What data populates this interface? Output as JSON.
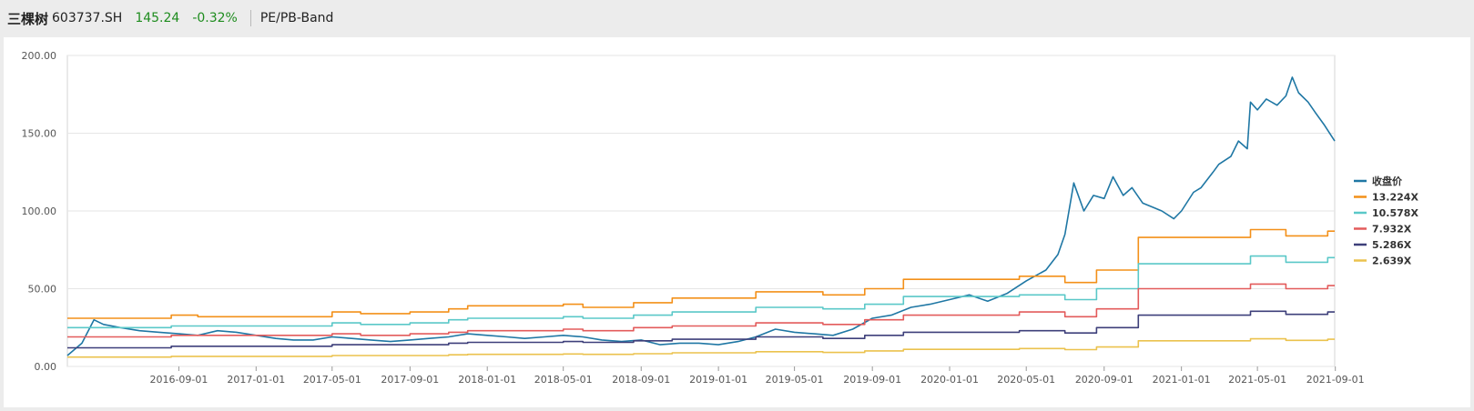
{
  "header": {
    "stock_name": "三棵树",
    "stock_code": "603737.SH",
    "price": "145.24",
    "change_pct": "-0.32%",
    "tab_label": "PE/PB-Band"
  },
  "colors": {
    "price_up_down": "#1e8c1e",
    "series": [
      "#1f77a4",
      "#f39019",
      "#5ac8c8",
      "#e35b5b",
      "#3d3f7a",
      "#ebc24d"
    ]
  },
  "chart_data": {
    "type": "line",
    "title": "",
    "xlabel": "",
    "ylabel": "",
    "ylim": [
      0,
      200
    ],
    "y_ticks": [
      "0.00",
      "50.00",
      "100.00",
      "150.00",
      "200.00"
    ],
    "x_range": [
      "2016-03-09",
      "2021-08-31"
    ],
    "x_ticks": [
      "2016-09-01",
      "2017-01-01",
      "2017-05-01",
      "2017-09-01",
      "2018-01-01",
      "2018-05-01",
      "2018-09-01",
      "2019-01-01",
      "2019-05-01",
      "2019-09-01",
      "2020-01-01",
      "2020-05-01",
      "2020-09-01",
      "2021-01-01",
      "2021-05-01",
      "2021-09-01"
    ],
    "grid": "horizontal",
    "legend_position": "right",
    "series": [
      {
        "name": "收盘价",
        "kind": "line",
        "points": [
          [
            "2016-03-09",
            7
          ],
          [
            "2016-04-01",
            15
          ],
          [
            "2016-04-20",
            30
          ],
          [
            "2016-05-05",
            27
          ],
          [
            "2016-06-01",
            25
          ],
          [
            "2016-07-01",
            23
          ],
          [
            "2016-08-01",
            22
          ],
          [
            "2016-09-01",
            21
          ],
          [
            "2016-10-01",
            20
          ],
          [
            "2016-11-01",
            23
          ],
          [
            "2016-12-01",
            22
          ],
          [
            "2017-01-01",
            20
          ],
          [
            "2017-02-01",
            18
          ],
          [
            "2017-03-01",
            17
          ],
          [
            "2017-04-01",
            17
          ],
          [
            "2017-05-01",
            19
          ],
          [
            "2017-06-01",
            18
          ],
          [
            "2017-07-01",
            17
          ],
          [
            "2017-08-01",
            16
          ],
          [
            "2017-09-01",
            17
          ],
          [
            "2017-10-01",
            18
          ],
          [
            "2017-11-01",
            19
          ],
          [
            "2017-12-01",
            21
          ],
          [
            "2018-01-01",
            20
          ],
          [
            "2018-02-01",
            19
          ],
          [
            "2018-03-01",
            18
          ],
          [
            "2018-04-01",
            19
          ],
          [
            "2018-05-01",
            20
          ],
          [
            "2018-06-01",
            19
          ],
          [
            "2018-07-01",
            17
          ],
          [
            "2018-08-01",
            16
          ],
          [
            "2018-09-01",
            17
          ],
          [
            "2018-10-01",
            14
          ],
          [
            "2018-11-01",
            15
          ],
          [
            "2018-12-01",
            15
          ],
          [
            "2019-01-01",
            14
          ],
          [
            "2019-02-01",
            16
          ],
          [
            "2019-03-01",
            19
          ],
          [
            "2019-04-01",
            24
          ],
          [
            "2019-05-01",
            22
          ],
          [
            "2019-06-01",
            21
          ],
          [
            "2019-07-01",
            20
          ],
          [
            "2019-08-01",
            24
          ],
          [
            "2019-09-01",
            31
          ],
          [
            "2019-10-01",
            33
          ],
          [
            "2019-11-01",
            38
          ],
          [
            "2019-12-01",
            40
          ],
          [
            "2020-01-01",
            43
          ],
          [
            "2020-02-01",
            46
          ],
          [
            "2020-03-01",
            42
          ],
          [
            "2020-04-01",
            47
          ],
          [
            "2020-05-01",
            55
          ],
          [
            "2020-06-01",
            62
          ],
          [
            "2020-06-20",
            72
          ],
          [
            "2020-07-01",
            85
          ],
          [
            "2020-07-15",
            118
          ],
          [
            "2020-07-31",
            100
          ],
          [
            "2020-08-15",
            110
          ],
          [
            "2020-09-01",
            108
          ],
          [
            "2020-09-15",
            122
          ],
          [
            "2020-10-01",
            110
          ],
          [
            "2020-10-15",
            115
          ],
          [
            "2020-11-01",
            105
          ],
          [
            "2020-12-01",
            100
          ],
          [
            "2020-12-20",
            95
          ],
          [
            "2021-01-01",
            100
          ],
          [
            "2021-01-20",
            112
          ],
          [
            "2021-02-01",
            115
          ],
          [
            "2021-02-20",
            125
          ],
          [
            "2021-03-01",
            130
          ],
          [
            "2021-03-20",
            135
          ],
          [
            "2021-04-01",
            145
          ],
          [
            "2021-04-15",
            140
          ],
          [
            "2021-04-20",
            170
          ],
          [
            "2021-05-01",
            165
          ],
          [
            "2021-05-15",
            172
          ],
          [
            "2021-06-01",
            168
          ],
          [
            "2021-06-15",
            174
          ],
          [
            "2021-06-25",
            186
          ],
          [
            "2021-07-05",
            176
          ],
          [
            "2021-07-20",
            170
          ],
          [
            "2021-08-01",
            163
          ],
          [
            "2021-08-15",
            155
          ],
          [
            "2021-08-31",
            145
          ]
        ]
      },
      {
        "name": "13.224X",
        "kind": "step",
        "points": [
          [
            "2016-03-09",
            31
          ],
          [
            "2016-08-20",
            33
          ],
          [
            "2016-10-01",
            32
          ],
          [
            "2017-05-01",
            35
          ],
          [
            "2017-06-15",
            34
          ],
          [
            "2017-09-01",
            35
          ],
          [
            "2017-11-01",
            37
          ],
          [
            "2017-12-01",
            39
          ],
          [
            "2018-05-01",
            40
          ],
          [
            "2018-06-01",
            38
          ],
          [
            "2018-08-20",
            41
          ],
          [
            "2018-10-20",
            44
          ],
          [
            "2019-03-01",
            48
          ],
          [
            "2019-06-15",
            46
          ],
          [
            "2019-08-20",
            50
          ],
          [
            "2019-10-20",
            56
          ],
          [
            "2020-04-20",
            58
          ],
          [
            "2020-07-01",
            54
          ],
          [
            "2020-08-20",
            62
          ],
          [
            "2020-10-25",
            83
          ],
          [
            "2021-04-20",
            88
          ],
          [
            "2021-06-15",
            84
          ],
          [
            "2021-08-20",
            87
          ],
          [
            "2021-08-31",
            87
          ]
        ]
      },
      {
        "name": "10.578X",
        "kind": "step",
        "points": [
          [
            "2016-03-09",
            25
          ],
          [
            "2016-08-20",
            26
          ],
          [
            "2017-05-01",
            28
          ],
          [
            "2017-06-15",
            27
          ],
          [
            "2017-09-01",
            28
          ],
          [
            "2017-11-01",
            30
          ],
          [
            "2017-12-01",
            31
          ],
          [
            "2018-05-01",
            32
          ],
          [
            "2018-06-01",
            31
          ],
          [
            "2018-08-20",
            33
          ],
          [
            "2018-10-20",
            35
          ],
          [
            "2019-03-01",
            38
          ],
          [
            "2019-06-15",
            37
          ],
          [
            "2019-08-20",
            40
          ],
          [
            "2019-10-20",
            45
          ],
          [
            "2020-04-20",
            46
          ],
          [
            "2020-07-01",
            43
          ],
          [
            "2020-08-20",
            50
          ],
          [
            "2020-10-25",
            66
          ],
          [
            "2021-04-20",
            71
          ],
          [
            "2021-06-15",
            67
          ],
          [
            "2021-08-20",
            70
          ],
          [
            "2021-08-31",
            70
          ]
        ]
      },
      {
        "name": "7.932X",
        "kind": "step",
        "points": [
          [
            "2016-03-09",
            19
          ],
          [
            "2016-08-20",
            20
          ],
          [
            "2017-05-01",
            21
          ],
          [
            "2017-06-15",
            20
          ],
          [
            "2017-09-01",
            21
          ],
          [
            "2017-11-01",
            22
          ],
          [
            "2017-12-01",
            23
          ],
          [
            "2018-05-01",
            24
          ],
          [
            "2018-06-01",
            23
          ],
          [
            "2018-08-20",
            25
          ],
          [
            "2018-10-20",
            26
          ],
          [
            "2019-03-01",
            28
          ],
          [
            "2019-06-15",
            27
          ],
          [
            "2019-08-20",
            30
          ],
          [
            "2019-10-20",
            33
          ],
          [
            "2020-04-20",
            35
          ],
          [
            "2020-07-01",
            32
          ],
          [
            "2020-08-20",
            37
          ],
          [
            "2020-10-25",
            50
          ],
          [
            "2021-04-20",
            53
          ],
          [
            "2021-06-15",
            50
          ],
          [
            "2021-08-20",
            52
          ],
          [
            "2021-08-31",
            52
          ]
        ]
      },
      {
        "name": "5.286X",
        "kind": "step",
        "points": [
          [
            "2016-03-09",
            12
          ],
          [
            "2016-08-20",
            13
          ],
          [
            "2017-05-01",
            14
          ],
          [
            "2017-11-01",
            15
          ],
          [
            "2017-12-01",
            15.5
          ],
          [
            "2018-05-01",
            16
          ],
          [
            "2018-06-01",
            15.5
          ],
          [
            "2018-08-20",
            16.5
          ],
          [
            "2018-10-20",
            17.5
          ],
          [
            "2019-03-01",
            19
          ],
          [
            "2019-06-15",
            18
          ],
          [
            "2019-08-20",
            20
          ],
          [
            "2019-10-20",
            22
          ],
          [
            "2020-04-20",
            23
          ],
          [
            "2020-07-01",
            21.5
          ],
          [
            "2020-08-20",
            25
          ],
          [
            "2020-10-25",
            33
          ],
          [
            "2021-04-20",
            35.5
          ],
          [
            "2021-06-15",
            33.5
          ],
          [
            "2021-08-20",
            35
          ],
          [
            "2021-08-31",
            35
          ]
        ]
      },
      {
        "name": "2.639X",
        "kind": "step",
        "points": [
          [
            "2016-03-09",
            6
          ],
          [
            "2016-08-20",
            6.5
          ],
          [
            "2017-05-01",
            7
          ],
          [
            "2017-11-01",
            7.5
          ],
          [
            "2017-12-01",
            7.8
          ],
          [
            "2018-05-01",
            8
          ],
          [
            "2018-06-01",
            7.8
          ],
          [
            "2018-08-20",
            8.2
          ],
          [
            "2018-10-20",
            8.8
          ],
          [
            "2019-03-01",
            9.5
          ],
          [
            "2019-06-15",
            9
          ],
          [
            "2019-08-20",
            10
          ],
          [
            "2019-10-20",
            11
          ],
          [
            "2020-04-20",
            11.5
          ],
          [
            "2020-07-01",
            10.8
          ],
          [
            "2020-08-20",
            12.5
          ],
          [
            "2020-10-25",
            16.5
          ],
          [
            "2021-04-20",
            17.8
          ],
          [
            "2021-06-15",
            16.8
          ],
          [
            "2021-08-20",
            17.5
          ],
          [
            "2021-08-31",
            17.5
          ]
        ]
      }
    ]
  }
}
